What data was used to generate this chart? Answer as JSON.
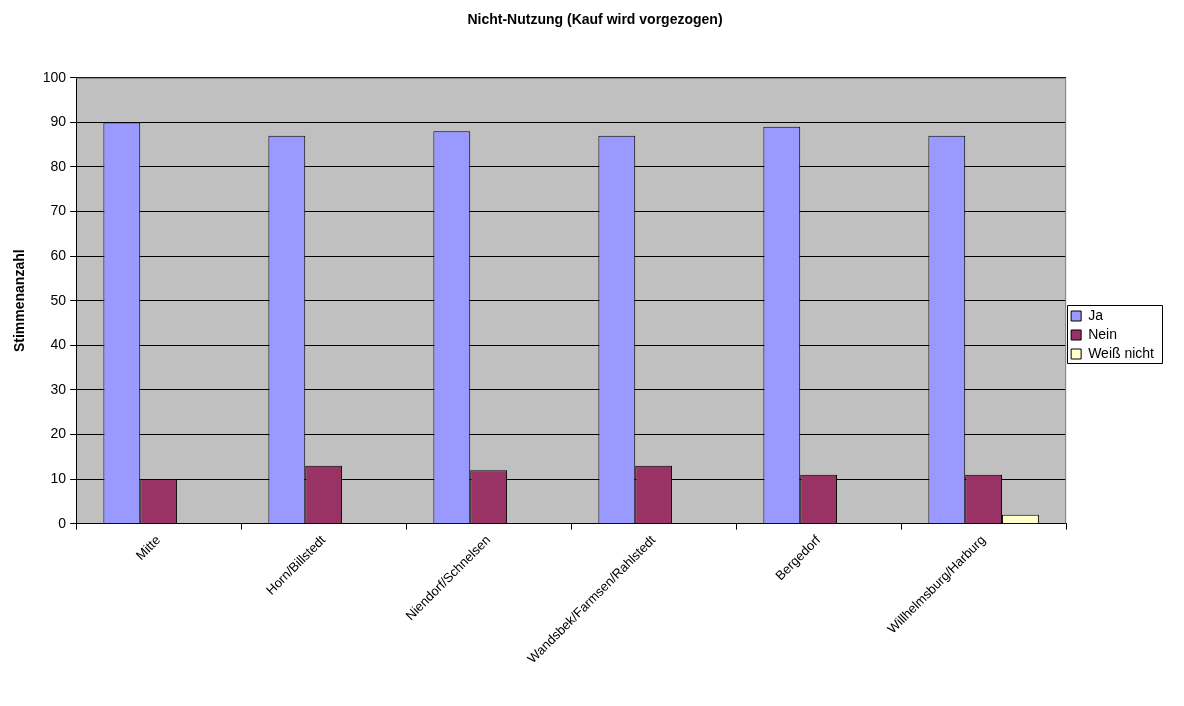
{
  "chart_data": {
    "type": "bar",
    "title": "Nicht-Nutzung (Kauf wird vorgezogen)",
    "ylabel": "Stimmenanzahl",
    "categories": [
      "Mitte",
      "Horn/Billstedt",
      "Niendorf/Schnelsen",
      "Wandsbek/Farmsen/Rahlstedt",
      "Bergedorf",
      "Willhelmsburg/Harburg"
    ],
    "series": [
      {
        "name": "Ja",
        "color": "#9999ff",
        "values": [
          90,
          87,
          88,
          87,
          89,
          87
        ]
      },
      {
        "name": "Nein",
        "color": "#993366",
        "values": [
          10,
          13,
          12,
          13,
          11,
          11
        ]
      },
      {
        "name": "Weiß nicht",
        "color": "#ffffcc",
        "values": [
          null,
          null,
          null,
          null,
          null,
          2
        ]
      }
    ],
    "ylim": [
      0,
      100
    ],
    "yticks": [
      0,
      10,
      20,
      30,
      40,
      50,
      60,
      70,
      80,
      90,
      100
    ],
    "grid": "y",
    "legend": "right"
  }
}
